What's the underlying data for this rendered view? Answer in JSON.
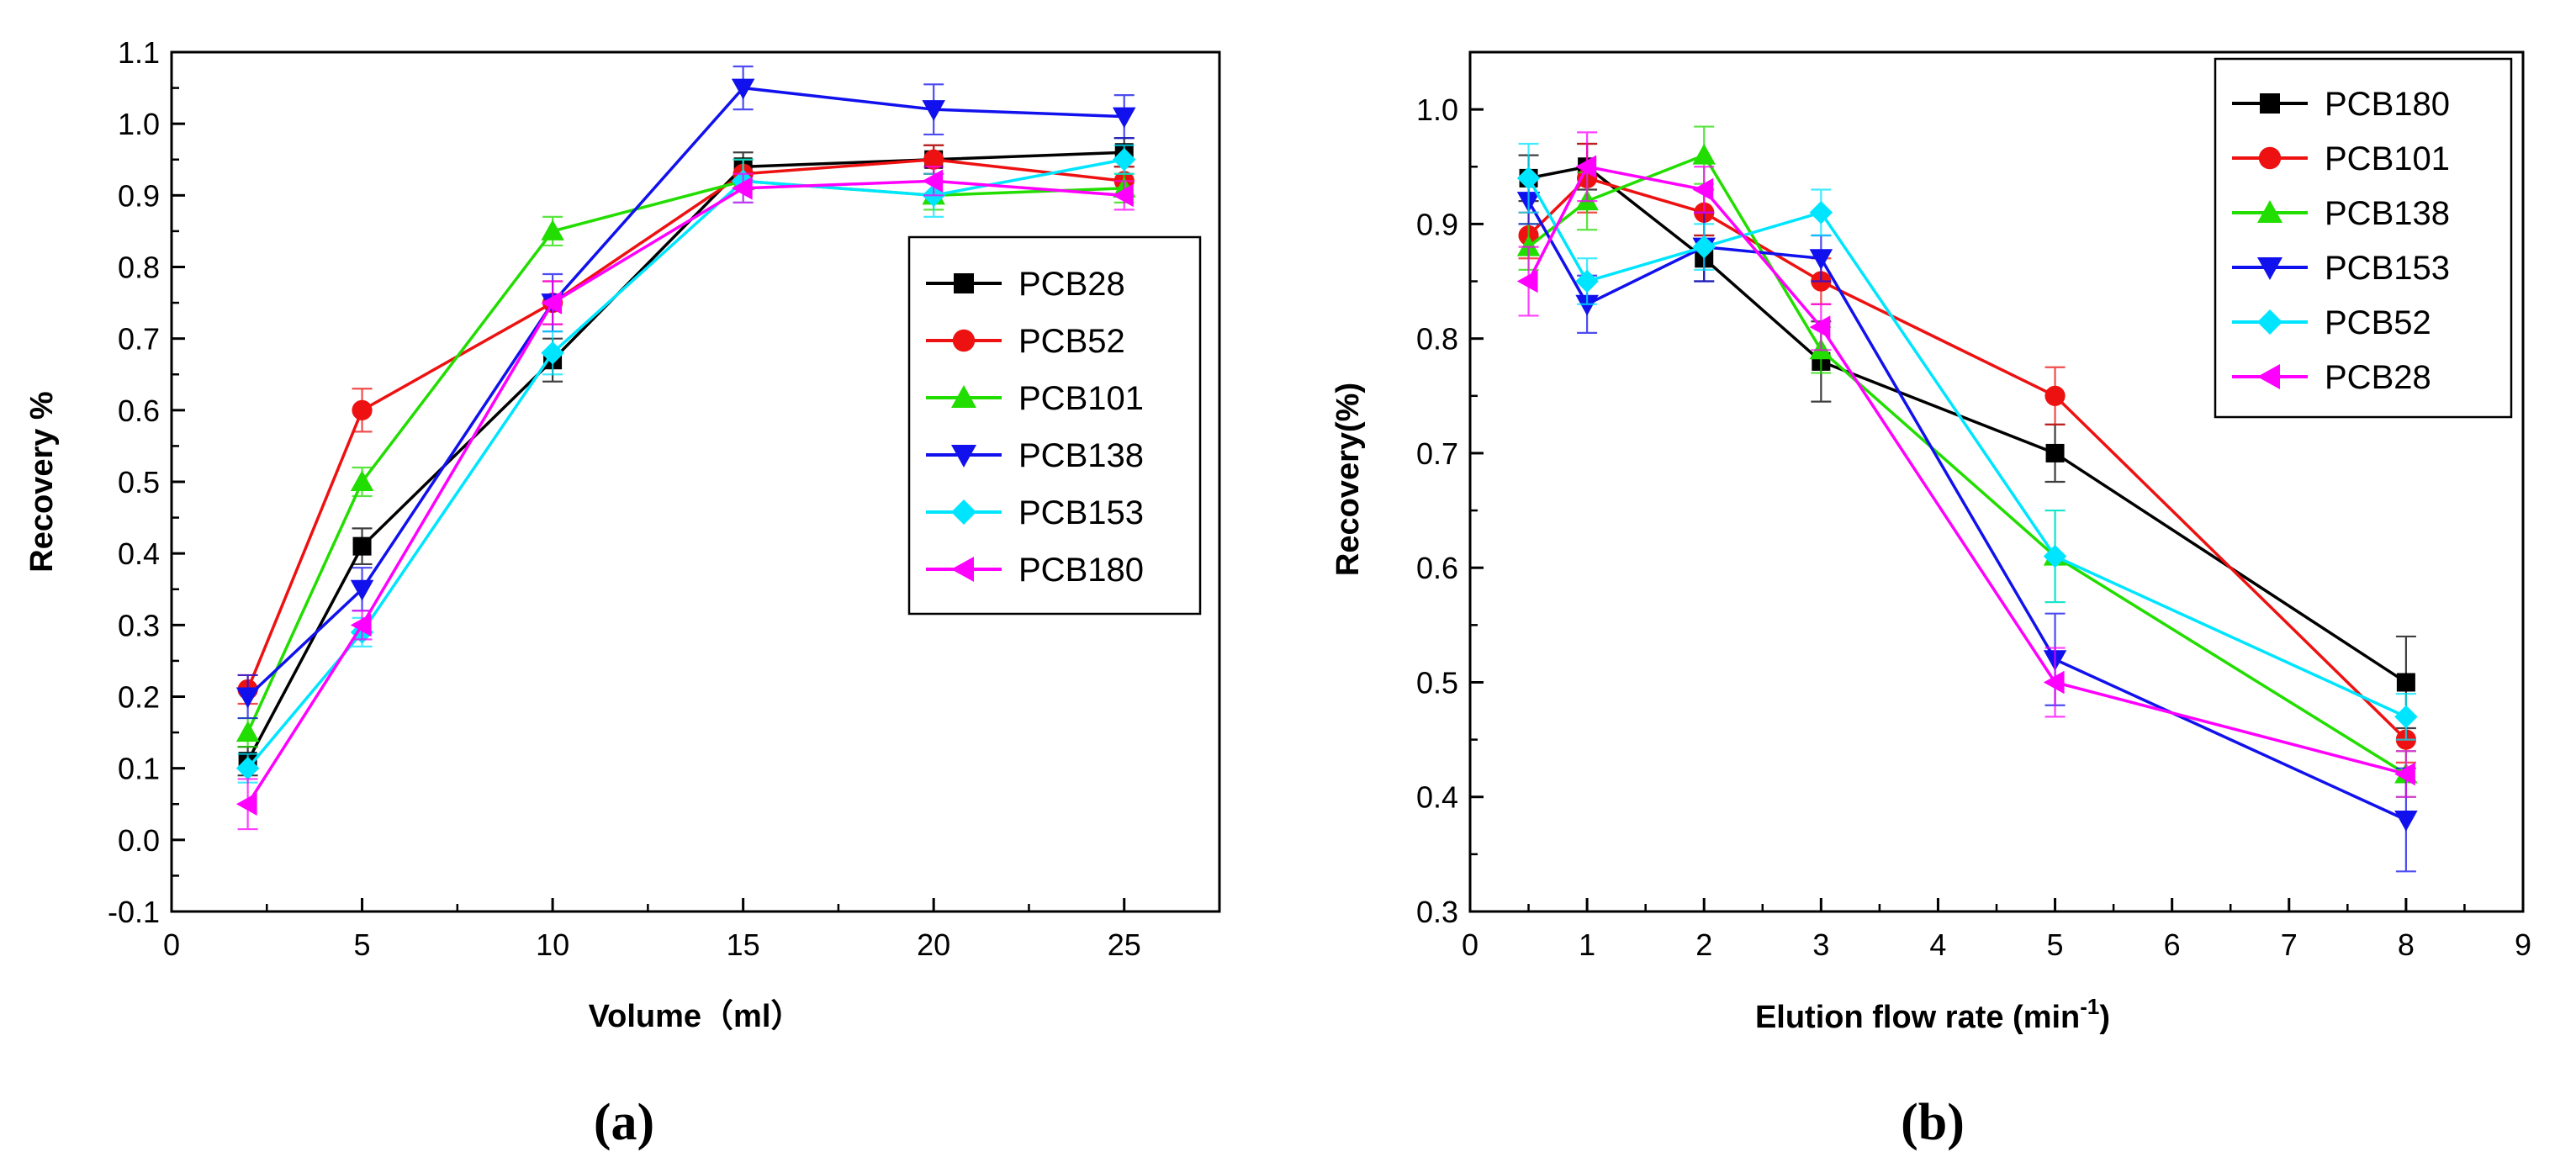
{
  "colors": {
    "black": "#000000",
    "red": "#ee1111",
    "green": "#22dd00",
    "blue": "#1111ee",
    "cyan": "#00e5ff",
    "magenta": "#ff00ff"
  },
  "chart_data": [
    {
      "type": "line",
      "panel_label": "(a)",
      "xlabel": "Volume（ml）",
      "ylabel": "Recovery %",
      "xlim": [
        0,
        27.5
      ],
      "ylim": [
        -0.1,
        1.1
      ],
      "x_ticks": [
        "0",
        "5",
        "10",
        "15",
        "20",
        "25"
      ],
      "y_ticks": [
        "-0.1",
        "0.0",
        "0.1",
        "0.2",
        "0.3",
        "0.4",
        "0.5",
        "0.6",
        "0.7",
        "0.8",
        "0.9",
        "1.0",
        "1.1"
      ],
      "legend_position": "center-right",
      "x": [
        2,
        5,
        10,
        15,
        20,
        25
      ],
      "series": [
        {
          "name": "PCB28",
          "marker": "square",
          "color": "#000000",
          "values": [
            0.11,
            0.41,
            0.67,
            0.94,
            0.95,
            0.96
          ],
          "errors": [
            0.02,
            0.025,
            0.03,
            0.02,
            0.02,
            0.02
          ]
        },
        {
          "name": "PCB52",
          "marker": "circle",
          "color": "#ee1111",
          "values": [
            0.21,
            0.6,
            0.75,
            0.93,
            0.95,
            0.92
          ],
          "errors": [
            0.02,
            0.03,
            0.03,
            0.02,
            0.02,
            0.02
          ]
        },
        {
          "name": "PCB101",
          "marker": "triangle-up",
          "color": "#22dd00",
          "values": [
            0.15,
            0.5,
            0.85,
            0.92,
            0.9,
            0.91
          ],
          "errors": [
            0.02,
            0.02,
            0.02,
            0.03,
            0.02,
            0.02
          ]
        },
        {
          "name": "PCB138",
          "marker": "triangle-down",
          "color": "#1111ee",
          "values": [
            0.2,
            0.35,
            0.75,
            1.05,
            1.02,
            1.01
          ],
          "errors": [
            0.03,
            0.03,
            0.04,
            0.03,
            0.035,
            0.03
          ]
        },
        {
          "name": "PCB153",
          "marker": "diamond",
          "color": "#00e5ff",
          "values": [
            0.1,
            0.29,
            0.68,
            0.92,
            0.9,
            0.95
          ],
          "errors": [
            0.02,
            0.02,
            0.03,
            0.03,
            0.03,
            0.02
          ]
        },
        {
          "name": "PCB180",
          "marker": "triangle-left",
          "color": "#ff00ff",
          "values": [
            0.05,
            0.3,
            0.75,
            0.91,
            0.92,
            0.9
          ],
          "errors": [
            0.035,
            0.02,
            0.03,
            0.02,
            0.02,
            0.02
          ]
        }
      ]
    },
    {
      "type": "line",
      "panel_label": "(b)",
      "xlabel": "Elution flow rate (min",
      "xlabel_sup": "-1",
      "xlabel_end": ")",
      "ylabel": "Recovery(%)",
      "xlim": [
        0,
        9
      ],
      "ylim": [
        0.3,
        1.05
      ],
      "x_ticks": [
        "0",
        "1",
        "2",
        "3",
        "4",
        "5",
        "6",
        "7",
        "8",
        "9"
      ],
      "y_ticks": [
        "0.3",
        "0.4",
        "0.5",
        "0.6",
        "0.7",
        "0.8",
        "0.9",
        "1.0"
      ],
      "legend_position": "top-right",
      "x": [
        0.5,
        1,
        2,
        3,
        5,
        8
      ],
      "series": [
        {
          "name": "PCB180",
          "marker": "square",
          "color": "#000000",
          "values": [
            0.94,
            0.95,
            0.87,
            0.78,
            0.7,
            0.5
          ],
          "errors": [
            0.02,
            0.02,
            0.02,
            0.035,
            0.025,
            0.04
          ]
        },
        {
          "name": "PCB101",
          "marker": "circle",
          "color": "#ee1111",
          "values": [
            0.89,
            0.94,
            0.91,
            0.85,
            0.75,
            0.45
          ],
          "errors": [
            0.02,
            0.03,
            0.02,
            0.02,
            0.025,
            0.02
          ]
        },
        {
          "name": "PCB138",
          "marker": "triangle-up",
          "color": "#22dd00",
          "values": [
            0.88,
            0.92,
            0.96,
            0.79,
            0.61,
            0.42
          ],
          "errors": [
            0.02,
            0.025,
            0.025,
            0.02,
            0.04,
            0.02
          ]
        },
        {
          "name": "PCB153",
          "marker": "triangle-down",
          "color": "#1111ee",
          "values": [
            0.92,
            0.83,
            0.88,
            0.87,
            0.52,
            0.38
          ],
          "errors": [
            0.02,
            0.025,
            0.03,
            0.02,
            0.04,
            0.045
          ]
        },
        {
          "name": "PCB52",
          "marker": "diamond",
          "color": "#00e5ff",
          "values": [
            0.94,
            0.85,
            0.88,
            0.91,
            0.61,
            0.47
          ],
          "errors": [
            0.03,
            0.02,
            0.02,
            0.02,
            0.04,
            0.02
          ]
        },
        {
          "name": "PCB28",
          "marker": "triangle-left",
          "color": "#ff00ff",
          "values": [
            0.85,
            0.95,
            0.93,
            0.81,
            0.5,
            0.42
          ],
          "errors": [
            0.03,
            0.03,
            0.02,
            0.02,
            0.03,
            0.02
          ]
        }
      ]
    }
  ]
}
